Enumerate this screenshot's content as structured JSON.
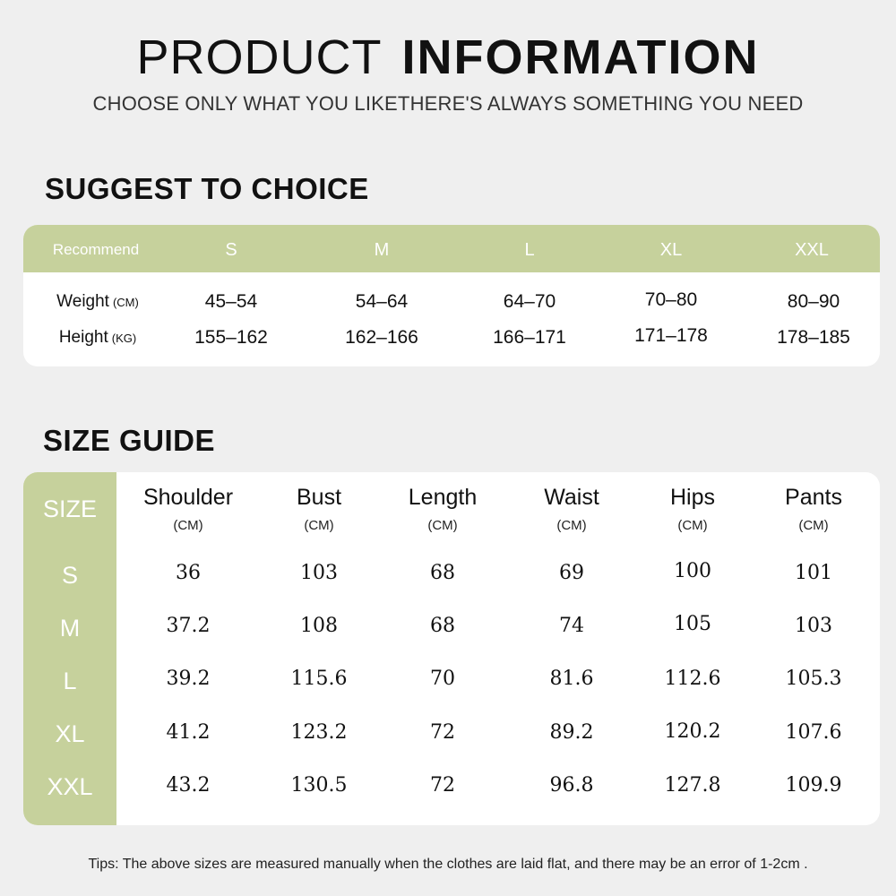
{
  "header": {
    "title_light": "PRODUCT",
    "title_bold": "INFORMATION",
    "subtitle": "CHOOSE ONLY WHAT YOU LIKETHERE'S ALWAYS SOMETHING YOU NEED"
  },
  "suggest": {
    "title": "SUGGEST TO CHOICE",
    "header": [
      "Recommend",
      "S",
      "M",
      "L",
      "XL",
      "XXL"
    ],
    "rows": [
      {
        "label": "Weight",
        "unit": "(CM)",
        "values": [
          "45–54",
          "54–64",
          "64–70",
          "70–80",
          "80–90"
        ]
      },
      {
        "label": "Height",
        "unit": "(KG)",
        "values": [
          "155–162",
          "162–166",
          "166–171",
          "171–178",
          "178–185"
        ]
      }
    ]
  },
  "guide": {
    "title": "SIZE GUIDE",
    "corner": "SIZE",
    "columns": [
      {
        "name": "Shoulder",
        "unit": "(CM)"
      },
      {
        "name": "Bust",
        "unit": "(CM)"
      },
      {
        "name": "Length",
        "unit": "(CM)"
      },
      {
        "name": "Waist",
        "unit": "(CM)"
      },
      {
        "name": "Hips",
        "unit": "(CM)"
      },
      {
        "name": "Pants",
        "unit": "(CM)"
      }
    ],
    "rows": [
      {
        "size": "S",
        "values": [
          "36",
          "103",
          "68",
          "69",
          "100",
          "101"
        ]
      },
      {
        "size": "M",
        "values": [
          "37.2",
          "108",
          "68",
          "74",
          "105",
          "103"
        ]
      },
      {
        "size": "L",
        "values": [
          "39.2",
          "115.6",
          "70",
          "81.6",
          "112.6",
          "105.3"
        ]
      },
      {
        "size": "XL",
        "values": [
          "41.2",
          "123.2",
          "72",
          "89.2",
          "120.2",
          "107.6"
        ]
      },
      {
        "size": "XXL",
        "values": [
          "43.2",
          "130.5",
          "72",
          "96.8",
          "127.8",
          "109.9"
        ]
      }
    ]
  },
  "tips": "Tips: The above sizes are measured manually when the clothes are laid flat, and there may be an error of 1-2cm .",
  "colors": {
    "accent": "#c6d19c",
    "background": "#efefef",
    "card": "#ffffff"
  }
}
